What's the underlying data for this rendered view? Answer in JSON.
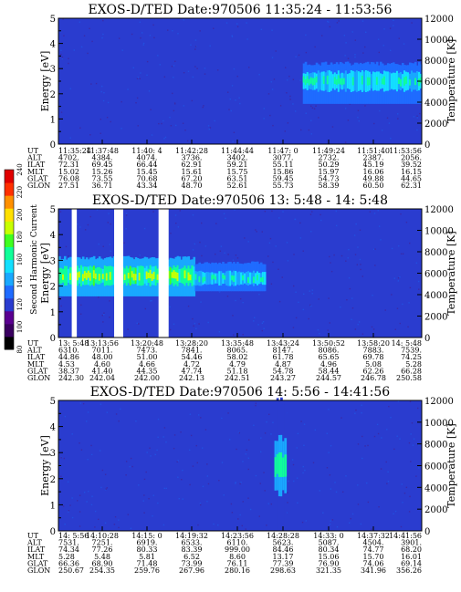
{
  "colors": {
    "background": "#2a3ccf",
    "scale": [
      "#000000",
      "#3a0060",
      "#5a0090",
      "#2a3ccf",
      "#1f6bff",
      "#19a8ff",
      "#13e0ff",
      "#10ff99",
      "#40ff20",
      "#c8ff00",
      "#ffe000",
      "#ff9000",
      "#ff3000",
      "#e00000"
    ],
    "gap": "#ffffff"
  },
  "colorbar": {
    "label": "Second Harmonic Current",
    "ticks": [
      "80",
      "100",
      "120",
      "140",
      "160",
      "180",
      "200",
      "220",
      "240"
    ]
  },
  "chart_data": [
    {
      "type": "heatmap",
      "title": "EXOS-D/TED   Date:970506  11:35:24 - 11:53:56",
      "ylabel": "Energy [eV]",
      "ylabel2": "Temperature [K]",
      "ylim": [
        0,
        5
      ],
      "y2lim": [
        0,
        12000
      ],
      "yticks": [
        "0",
        "1",
        "2",
        "3",
        "4",
        "5"
      ],
      "y2ticks": [
        "0",
        "2000",
        "4000",
        "6000",
        "8000",
        "10000",
        "12000"
      ],
      "time_range_s": [
        41724,
        42836
      ],
      "ephemeris_labels": [
        "UT",
        "ALT",
        "ILAT",
        "MLT",
        "GLAT",
        "GLON"
      ],
      "ephemeris": [
        [
          "11:35:24",
          "11:37:48",
          "11:40: 4",
          "11:42:28",
          "11:44:44",
          "11:47: 0",
          "11:49:24",
          "11:51:40",
          "11:53:56"
        ],
        [
          "4702.",
          "4384.",
          "4074.",
          "3736.",
          "3402.",
          "3077.",
          "2732.",
          "2387.",
          "2056."
        ],
        [
          "72.31",
          "69.45",
          "66.44",
          "62.91",
          "59.21",
          "55.11",
          "50.29",
          "45.19",
          "39.52"
        ],
        [
          "15.02",
          "15.26",
          "15.45",
          "15.61",
          "15.75",
          "15.86",
          "15.97",
          "16.06",
          "16.15"
        ],
        [
          "76.08",
          "73.55",
          "70.68",
          "67.20",
          "63.51",
          "59.45",
          "54.73",
          "49.88",
          "44.65"
        ],
        [
          "27.51",
          "36.71",
          "43.34",
          "48.70",
          "52.61",
          "55.73",
          "58.39",
          "60.50",
          "62.31"
        ]
      ],
      "features": [
        {
          "t_start": 42472,
          "t_end": 42836,
          "e_low": 1.6,
          "e_high": 3.2,
          "e_center": 2.5,
          "level": 150,
          "description": "thermal ion band"
        }
      ],
      "gaps": []
    },
    {
      "type": "heatmap",
      "title": "EXOS-D/TED   Date:970506  13: 5:48 - 14: 5:48",
      "ylabel": "Energy [eV]",
      "ylabel2": "Temperature [K]",
      "ylim": [
        0,
        5
      ],
      "y2lim": [
        0,
        12000
      ],
      "yticks": [
        "0",
        "1",
        "2",
        "3",
        "4",
        "5"
      ],
      "y2ticks": [
        "0",
        "2000",
        "4000",
        "6000",
        "8000",
        "10000",
        "12000"
      ],
      "time_range_s": [
        47148,
        50748
      ],
      "ephemeris_labels": [
        "UT",
        "ALT",
        "ILAT",
        "MLT",
        "GLAT",
        "GLON"
      ],
      "ephemeris": [
        [
          "13: 5:48",
          "13:13:56",
          "13:20:48",
          "13:28:20",
          "13:35:48",
          "13:43:24",
          "13:50:52",
          "13:58:20",
          "14: 5:48"
        ],
        [
          "6310.",
          "7011.",
          "7473.",
          "7841.",
          "8065.",
          "8147.",
          "8086.",
          "7883.",
          "7539."
        ],
        [
          "44.86",
          "48.00",
          "51.00",
          "54.46",
          "58.02",
          "61.78",
          "65.65",
          "69.78",
          "74.25"
        ],
        [
          "4.53",
          "4.60",
          "4.66",
          "4.72",
          "4.79",
          "4.87",
          "4.96",
          "5.08",
          "5.28"
        ],
        [
          "38.37",
          "41.40",
          "44.35",
          "47.74",
          "51.18",
          "54.78",
          "58.44",
          "62.26",
          "66.28"
        ],
        [
          "242.30",
          "242.04",
          "242.00",
          "242.13",
          "242.51",
          "243.27",
          "244.57",
          "246.78",
          "250.58"
        ]
      ],
      "features": [
        {
          "t_start": 47148,
          "t_end": 48500,
          "e_low": 1.6,
          "e_high": 3.1,
          "e_center": 2.4,
          "level": 165,
          "description": "thermal ion band"
        },
        {
          "t_start": 48500,
          "t_end": 49200,
          "e_low": 1.8,
          "e_high": 2.9,
          "e_center": 2.3,
          "level": 145,
          "description": "fading band"
        }
      ],
      "gaps": [
        {
          "t_start": 47280,
          "t_end": 47330
        },
        {
          "t_start": 47700,
          "t_end": 47790
        },
        {
          "t_start": 48140,
          "t_end": 48240
        }
      ]
    },
    {
      "type": "heatmap",
      "title": "EXOS-D/TED   Date:970506  14: 5:56 - 14:41:56",
      "ylabel": "Energy [eV]",
      "ylabel2": "Temperature [K]",
      "ylim": [
        0,
        5
      ],
      "y2lim": [
        0,
        12000
      ],
      "yticks": [
        "0",
        "1",
        "2",
        "3",
        "4",
        "5"
      ],
      "y2ticks": [
        "0",
        "2000",
        "4000",
        "6000",
        "8000",
        "10000",
        "12000"
      ],
      "time_range_s": [
        50756,
        52916
      ],
      "ephemeris_labels": [
        "UT",
        "ALT",
        "ILAT",
        "MLT",
        "GLAT",
        "GLON"
      ],
      "ephemeris": [
        [
          "14: 5:56",
          "14:10:28",
          "14:15: 0",
          "14:19:32",
          "14:23:56",
          "14:28:28",
          "14:33: 0",
          "14:37:32",
          "14:41:56"
        ],
        [
          "7531.",
          "7251.",
          "6919.",
          "6533.",
          "6110.",
          "5623.",
          "5087.",
          "4504.",
          "3901."
        ],
        [
          "74.34",
          "77.26",
          "80.33",
          "83.39",
          "999.00",
          "84.46",
          "80.34",
          "74.77",
          "68.20"
        ],
        [
          "5.28",
          "5.48",
          "5.81",
          "6.52",
          "8.60",
          "13.17",
          "15.06",
          "15.70",
          "16.01"
        ],
        [
          "66.36",
          "68.90",
          "71.48",
          "73.99",
          "76.11",
          "77.39",
          "76.90",
          "74.06",
          "69.14"
        ],
        [
          "250.67",
          "254.35",
          "259.76",
          "267.96",
          "280.16",
          "298.63",
          "321.35",
          "341.96",
          "356.26"
        ]
      ],
      "features": [
        {
          "t_start": 52040,
          "t_end": 52110,
          "e_low": 0,
          "e_high": 5,
          "e_center": 2.5,
          "level": 140,
          "description": "vertical stripe"
        }
      ],
      "gaps": []
    }
  ]
}
